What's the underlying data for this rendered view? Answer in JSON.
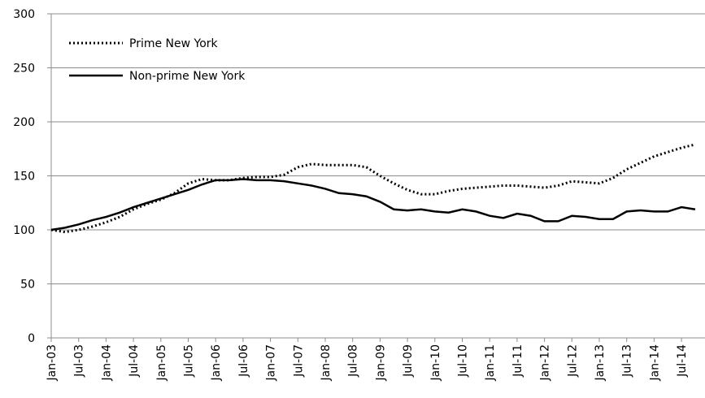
{
  "chart_data": {
    "type": "line",
    "categories": [
      "Jan-03",
      null,
      "Jul-03",
      null,
      "Jan-04",
      null,
      "Jul-04",
      null,
      "Jan-05",
      null,
      "Jul-05",
      null,
      "Jan-06",
      null,
      "Jul-06",
      null,
      "Jan-07",
      null,
      "Jul-07",
      null,
      "Jan-08",
      null,
      "Jul-08",
      null,
      "Jan-09",
      null,
      "Jul-09",
      null,
      "Jan-10",
      null,
      "Jul-10",
      null,
      "Jan-11",
      null,
      "Jul-11",
      null,
      "Jan-12",
      null,
      "Jul-12",
      null,
      "Jan-13",
      null,
      "Jul-13",
      null,
      "Jan-14",
      null,
      "Jul-14",
      null
    ],
    "series": [
      {
        "name": "Prime New York",
        "color": "#000000",
        "dash": "dotted",
        "values": [
          100,
          98,
          100,
          103,
          107,
          112,
          119,
          124,
          128,
          134,
          143,
          147,
          146,
          146,
          148,
          149,
          149,
          151,
          158,
          161,
          160,
          160,
          160,
          158,
          150,
          143,
          137,
          133,
          133,
          136,
          138,
          139,
          140,
          141,
          141,
          140,
          139,
          141,
          145,
          144,
          143,
          148,
          156,
          162,
          168,
          172,
          176,
          179
        ]
      },
      {
        "name": "Non-prime New York",
        "color": "#000000",
        "dash": "solid",
        "values": [
          100,
          102,
          105,
          109,
          112,
          116,
          121,
          125,
          129,
          133,
          137,
          142,
          146,
          146,
          147,
          146,
          146,
          145,
          143,
          141,
          138,
          134,
          133,
          131,
          126,
          119,
          118,
          119,
          117,
          116,
          119,
          117,
          113,
          111,
          115,
          113,
          108,
          108,
          113,
          112,
          110,
          110,
          117,
          118,
          117,
          117,
          121,
          119
        ]
      }
    ],
    "ylim": [
      0,
      300
    ],
    "yticks": [
      0,
      50,
      100,
      150,
      200,
      250,
      300
    ],
    "grid": true,
    "legend": "upper left"
  }
}
